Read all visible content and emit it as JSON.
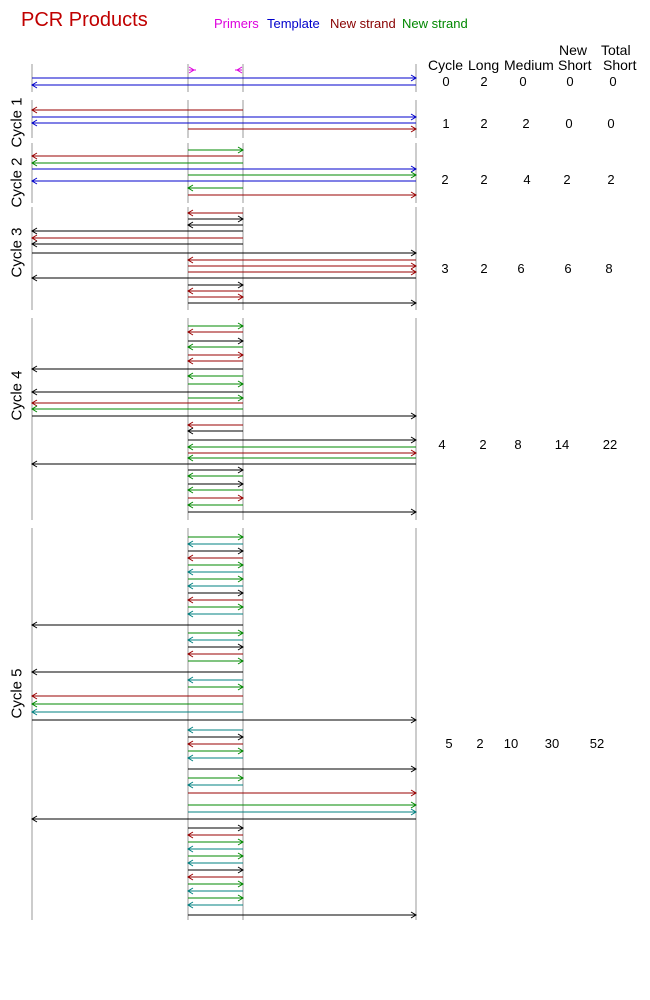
{
  "title": "PCR Products",
  "legend": [
    {
      "label": "Primers",
      "color": "#dd00dd"
    },
    {
      "label": "Template",
      "color": "#0000cc"
    },
    {
      "label": "New strand",
      "color": "#880000"
    },
    {
      "label": "New strand",
      "color": "#008800"
    }
  ],
  "colors": {
    "black": "#000000",
    "template": "#0000cc",
    "red": "#990000",
    "green": "#008800",
    "teal": "#008080",
    "primer": "#dd00dd",
    "guide": "#999999"
  },
  "table": {
    "headers": {
      "cycle": "Cycle",
      "long": "Long",
      "medium": "Medium",
      "new_short_top": "New",
      "new_short_bottom": "Short",
      "total_short_top": "Total",
      "total_short_bottom": "Short"
    },
    "rows": [
      {
        "cycle": "0",
        "long": "2",
        "medium": "0",
        "new_short": "0",
        "total_short": "0"
      },
      {
        "cycle": "1",
        "long": "2",
        "medium": "2",
        "new_short": "0",
        "total_short": "0"
      },
      {
        "cycle": "2",
        "long": "2",
        "medium": "4",
        "new_short": "2",
        "total_short": "2"
      },
      {
        "cycle": "3",
        "long": "2",
        "medium": "6",
        "new_short": "6",
        "total_short": "8"
      },
      {
        "cycle": "4",
        "long": "2",
        "medium": "8",
        "new_short": "14",
        "total_short": "22"
      },
      {
        "cycle": "5",
        "long": "2",
        "medium": "10",
        "new_short": "30",
        "total_short": "52"
      }
    ]
  },
  "cycle_labels": [
    "Cycle 1",
    "Cycle 2",
    "Cycle 3",
    "Cycle 4",
    "Cycle 5"
  ]
}
